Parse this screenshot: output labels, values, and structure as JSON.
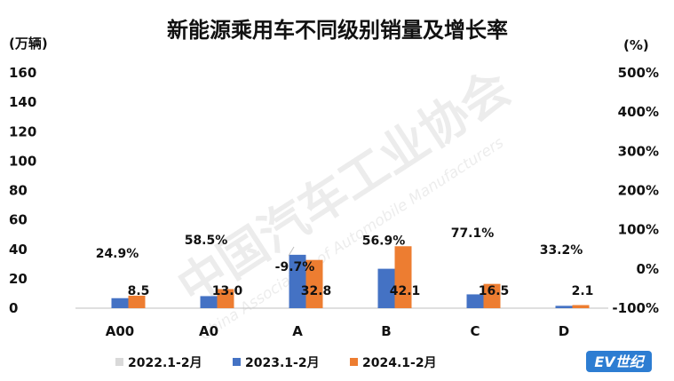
{
  "chart_data": {
    "type": "bar",
    "title": "新能源乘用车不同级别销量及增长率",
    "ylabel_left": "(万辆)",
    "ylabel_right": "(%)",
    "ylim": [
      0,
      160
    ],
    "yticks": [
      "160",
      "140",
      "120",
      "100",
      "80",
      "60",
      "40",
      "20",
      "0"
    ],
    "y2lim": [
      -100,
      500
    ],
    "y2ticks": [
      "500%",
      "400%",
      "300%",
      "200%",
      "100%",
      "0%",
      "-100%"
    ],
    "categories": [
      "A00",
      "A0",
      "A",
      "B",
      "C",
      "D"
    ],
    "series": [
      {
        "name": "2022.1-2月",
        "color": "#d9d9d9",
        "values": [
          0,
          0,
          0,
          0,
          0,
          0
        ]
      },
      {
        "name": "2023.1-2月",
        "color": "#4472c4",
        "values": [
          6.8,
          8.2,
          36.3,
          26.8,
          9.4,
          1.6
        ]
      },
      {
        "name": "2024.1-2月",
        "color": "#ed7d31",
        "values": [
          8.5,
          13.0,
          32.8,
          42.1,
          16.5,
          2.1
        ],
        "labels": [
          "8.5",
          "13.0",
          "32.8",
          "42.1",
          "16.5",
          "2.1"
        ]
      }
    ],
    "growth_labels": [
      "24.9%",
      "58.5%",
      "-9.7%",
      "56.9%",
      "77.1%",
      "33.2%"
    ],
    "growth_colors": [
      "#111111",
      "#111111",
      "#c00000",
      "#111111",
      "#111111",
      "#111111"
    ],
    "grid": false,
    "legend_position": "bottom"
  },
  "watermark": {
    "text": "中国汽车工业协会",
    "subtext": "China Association of Automobile Manufacturers"
  },
  "logo": {
    "text": "EV世纪",
    "bg_color": "#2d7dd2"
  }
}
